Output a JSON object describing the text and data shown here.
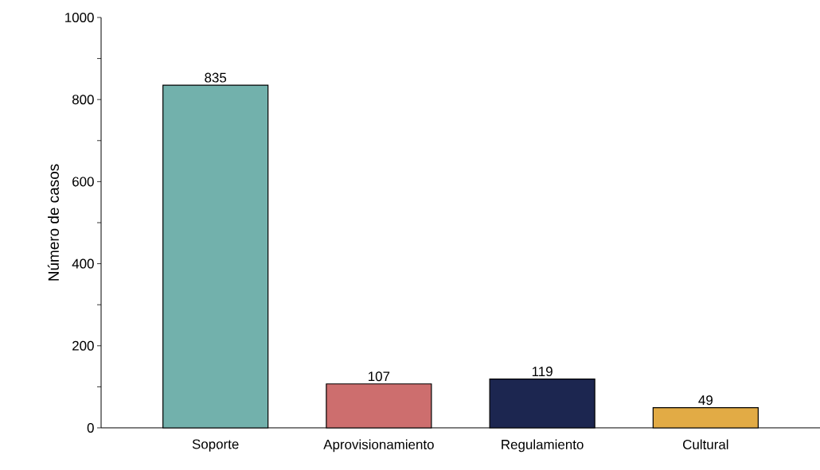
{
  "chart_data": {
    "type": "bar",
    "ylabel": "Número de casos",
    "categories": [
      "Soporte",
      "Aprovisionamiento",
      "Regulamiento",
      "Cultural"
    ],
    "values": [
      835,
      107,
      119,
      49
    ],
    "colors": [
      "#72b1ac",
      "#cd6e6e",
      "#1c2650",
      "#e2ab45"
    ],
    "ylim": [
      0,
      1000
    ],
    "yticks": [
      0,
      {
        "value": 100,
        "label": null
      },
      200,
      {
        "value": 300,
        "label": null
      },
      400,
      {
        "value": 500,
        "label": null
      },
      600,
      {
        "value": 700,
        "label": null
      },
      800,
      {
        "value": 900,
        "label": null
      },
      1000
    ],
    "data_labels": true
  }
}
